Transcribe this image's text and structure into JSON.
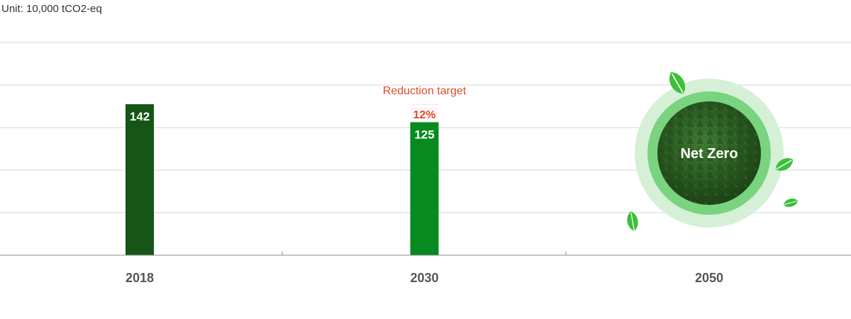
{
  "unit_label": "Unit: 10,000 tCO2-eq",
  "chart_data": {
    "type": "bar",
    "categories": [
      "2018",
      "2030",
      "2050"
    ],
    "values": [
      142,
      125,
      0
    ],
    "data_labels": [
      "142",
      "125",
      ""
    ],
    "ylim": [
      0,
      200
    ],
    "grid": true,
    "reduction": {
      "label": "Reduction target",
      "percent": "12%",
      "from": 142,
      "to": 125
    },
    "net_zero_label": "Net Zero"
  },
  "colors": {
    "bar_2018": "#155617",
    "bar_2030": "#078a1f",
    "reduction_red": "#e04a2a",
    "reduction_fill": "#fbe4df",
    "ring_outer": "#d5f0d6",
    "ring_inner": "#7ad37f",
    "forest": "#2a5a26",
    "leaf": "#3cbf3a"
  },
  "icons": [
    "leaf-icon",
    "forest-image"
  ]
}
